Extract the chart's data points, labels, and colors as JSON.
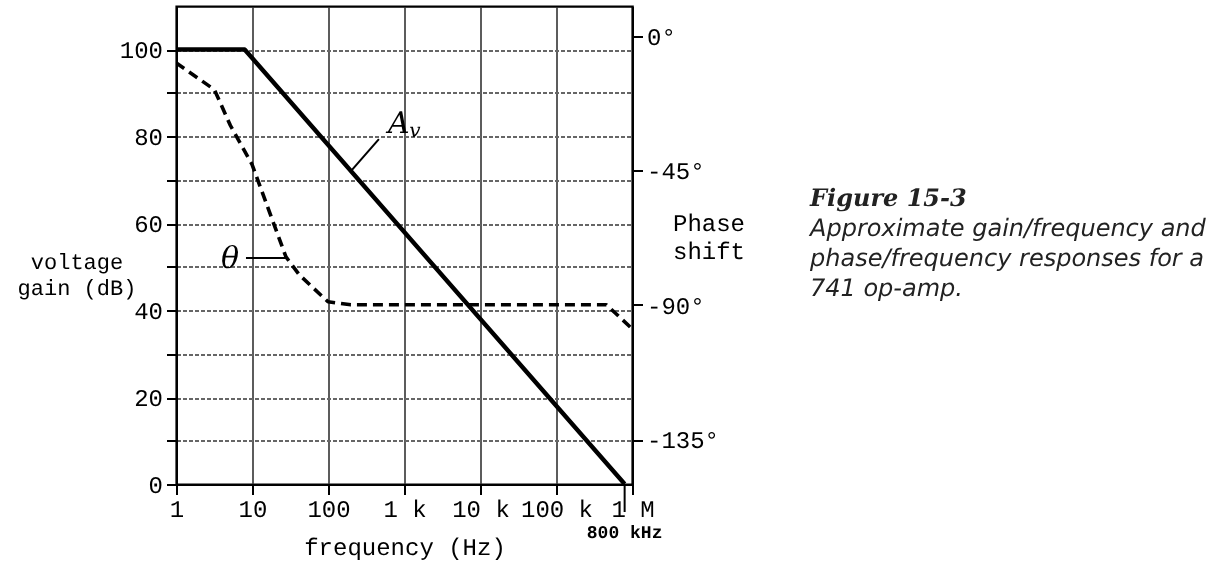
{
  "chart_data": {
    "type": "line",
    "title": "Figure 15-3",
    "subtitle": "Approximate gain/frequency and phase/frequency responses for a 741 op-amp.",
    "xlabel": "frequency (Hz)",
    "ylabel": "voltage gain (dB)",
    "y2label": "Phase shift",
    "log": "x",
    "grid": true,
    "line_style": "solid",
    "xlim": [
      1,
      1000000
    ],
    "xticks": [
      1,
      10,
      100,
      {
        "value": 1000,
        "label": "1 k"
      },
      {
        "value": 10000,
        "label": "10 k"
      },
      {
        "value": 100000,
        "label": "100 k"
      },
      {
        "value": 1000000,
        "label": "1 M"
      }
    ],
    "ylim": [
      0,
      110
    ],
    "yticks": [
      0,
      {
        "value": 10,
        "label": null
      },
      20,
      {
        "value": 30,
        "label": null
      },
      40,
      {
        "value": 50,
        "label": null
      },
      60,
      {
        "value": 70,
        "label": null
      },
      80,
      {
        "value": 90,
        "label": null
      },
      100
    ],
    "y2lim": [
      -150,
      10
    ],
    "y2ticks": [
      {
        "value": 0,
        "label": "0°"
      },
      {
        "value": -45,
        "label": "-45°"
      },
      {
        "value": -90,
        "label": "-90°"
      },
      {
        "value": -135,
        "label": "-135°"
      }
    ],
    "series": [
      {
        "color": "#000000",
        "x": [
          1,
          8,
          800000
        ],
        "values": [
          100,
          100,
          0
        ]
      },
      {
        "color": "#000000",
        "axis": "y2",
        "line_style": "dashed",
        "x": [
          1,
          3.2,
          5.2,
          10,
          17,
          28,
          42,
          100,
          200,
          460000,
          1000000
        ],
        "values": [
          -9,
          -18,
          -30,
          -43,
          -59,
          -74,
          -80,
          -89,
          -90,
          -90,
          -98
        ]
      }
    ],
    "annotations": [
      {
        "text": "A$_{v}$",
        "x": 200,
        "y": 72
      },
      {
        "text": "θ",
        "x": 28,
        "y": 52
      },
      {
        "text": "800 kHz",
        "x": 800000,
        "y": 0
      }
    ]
  }
}
